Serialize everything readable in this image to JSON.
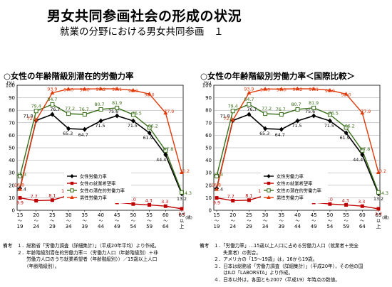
{
  "page": {
    "title": "男女共同参画社会の形成の状況",
    "subtitle": "就業の分野における男女共同参画　１"
  },
  "charts": [
    {
      "heading": "○女性の年齢階級別潜在的労働力率",
      "notes_label": "備考",
      "notes": [
        "１．総務省「労働力調査（詳細集計）」（平成20年平均）より作成。",
        "２．年齢階級別潜在的労働力率＝（労働力人口（年齢階級別）＋非\n　　労働力人口のうち就業希望者（年齢階級別））／15歳以上人口\n　　（年齢階級別）。"
      ]
    },
    {
      "heading": "○女性の年齢階級別労働力率＜国際比較＞",
      "notes_label": "備考",
      "notes": [
        "１．「労働力率」…15歳以上人口に占める労働力人口（就業者＋完全\n　　失業者）の割合。",
        "２．アメリカの「15～19歳」は，16から19歳。",
        "３．日本は総務省「労働力調査（詳細集計）」（平成20年），その他の国\n　　はILO「LABORSTA」より作成。",
        "４．日本以外は，各国とも2007（平成19）年時点の数値。"
      ]
    }
  ],
  "chart_data": [
    {
      "type": "line",
      "ylabel": "(%)",
      "ylim": [
        0,
        100
      ],
      "yticks": [
        0,
        10,
        20,
        30,
        40,
        50,
        60,
        70,
        80,
        90,
        100
      ],
      "categories": [
        [
          "15",
          "～",
          "19"
        ],
        [
          "20",
          "～",
          "24"
        ],
        [
          "25",
          "～",
          "29"
        ],
        [
          "30",
          "～",
          "34"
        ],
        [
          "35",
          "～",
          "39"
        ],
        [
          "40",
          "～",
          "44"
        ],
        [
          "45",
          "～",
          "49"
        ],
        [
          "50",
          "～",
          "54"
        ],
        [
          "55",
          "～",
          "59"
        ],
        [
          "60",
          "～",
          "64"
        ],
        [
          "65",
          "以",
          "上"
        ]
      ],
      "x_unit": "(歳)",
      "grid": true,
      "legend_position": "center-bottom",
      "series": [
        {
          "name": "女性労働力率",
          "color": "#000000",
          "marker": "diamond",
          "values": [
            17.4,
            71.8,
            76.7,
            65.3,
            64.7,
            71.5,
            75.6,
            71.5,
            61.9,
            44.4,
            13.2
          ]
        },
        {
          "name": "女性の就業希望率",
          "color": "#c00000",
          "marker": "square",
          "values": [
            9.9,
            7.7,
            8.1,
            11.9,
            12.1,
            9.2,
            6.3,
            5.0,
            4.3,
            3.3,
            1.2
          ]
        },
        {
          "name": "女性の潜在的労働力率",
          "color": "#3a6e1a",
          "marker": "hollow-square",
          "values": [
            27.3,
            79.4,
            84.7,
            77.2,
            76.7,
            80.7,
            81.9,
            76.5,
            66.2,
            47.8,
            14.3
          ]
        },
        {
          "name": "男性労働力率",
          "color": "#e03a0a",
          "marker": "triangle",
          "values": [
            16.8,
            72.1,
            93.9,
            97.0,
            97.0,
            97.2,
            97.1,
            96.0,
            93.0,
            77.9,
            30.2
          ]
        }
      ]
    },
    {
      "type": "line",
      "ylabel": "(%)",
      "ylim": [
        0,
        100
      ],
      "yticks": [
        0,
        10,
        20,
        30,
        40,
        50,
        60,
        70,
        80,
        90,
        100
      ],
      "categories": [
        [
          "15",
          "～",
          "19"
        ],
        [
          "20",
          "～",
          "24"
        ],
        [
          "25",
          "～",
          "29"
        ],
        [
          "30",
          "～",
          "34"
        ],
        [
          "35",
          "～",
          "39"
        ],
        [
          "40",
          "～",
          "44"
        ],
        [
          "45",
          "～",
          "49"
        ],
        [
          "50",
          "～",
          "54"
        ],
        [
          "55",
          "～",
          "59"
        ],
        [
          "60",
          "～",
          "64"
        ],
        [
          "65",
          "以",
          "上"
        ]
      ],
      "x_unit": "(歳)",
      "grid": true,
      "legend_position": "center-bottom",
      "series": [
        {
          "name": "女性労働力率",
          "color": "#000000",
          "marker": "diamond",
          "values": [
            17.4,
            71.8,
            76.7,
            65.3,
            64.7,
            71.5,
            75.6,
            71.5,
            61.9,
            44.4,
            13.2
          ]
        },
        {
          "name": "女性の就業希望率",
          "color": "#c00000",
          "marker": "square",
          "values": [
            9.9,
            7.7,
            8.1,
            11.9,
            12.1,
            9.2,
            6.3,
            5.0,
            4.3,
            3.3,
            1.2
          ]
        },
        {
          "name": "女性の潜在的労働力率",
          "color": "#3a6e1a",
          "marker": "hollow-square",
          "values": [
            27.3,
            79.4,
            84.7,
            77.2,
            76.7,
            80.7,
            81.9,
            76.5,
            66.2,
            47.8,
            14.3
          ]
        },
        {
          "name": "男性労働力率",
          "color": "#e03a0a",
          "marker": "triangle",
          "values": [
            16.8,
            72.1,
            93.9,
            97.0,
            97.0,
            97.2,
            97.1,
            96.0,
            93.0,
            77.9,
            30.2
          ]
        }
      ]
    }
  ]
}
